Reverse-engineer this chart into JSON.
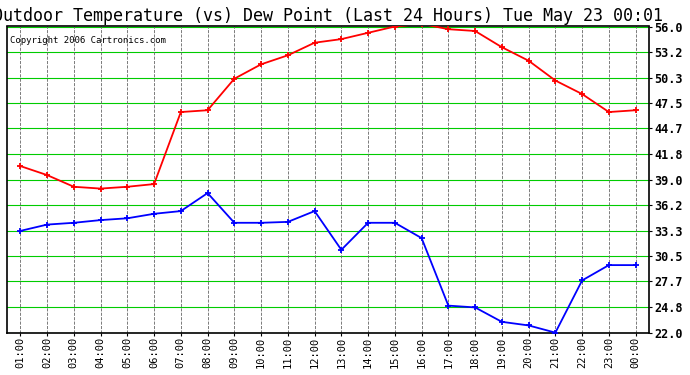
{
  "title": "Outdoor Temperature (vs) Dew Point (Last 24 Hours) Tue May 23 00:01",
  "copyright": "Copyright 2006 Cartronics.com",
  "fig_bg_color": "#ffffff",
  "plot_bg_color": "#ffffff",
  "grid_color_h": "#00cc00",
  "grid_color_v": "#666666",
  "border_color": "#000000",
  "x_labels": [
    "01:00",
    "02:00",
    "03:00",
    "04:00",
    "05:00",
    "06:00",
    "07:00",
    "08:00",
    "09:00",
    "10:00",
    "11:00",
    "12:00",
    "13:00",
    "14:00",
    "15:00",
    "16:00",
    "17:00",
    "18:00",
    "19:00",
    "20:00",
    "21:00",
    "22:00",
    "23:00",
    "00:00"
  ],
  "temp_color": "#ff0000",
  "dew_color": "#0000ff",
  "temp_data": [
    40.5,
    39.5,
    38.2,
    38.0,
    38.2,
    38.5,
    46.5,
    46.7,
    50.2,
    51.8,
    52.8,
    54.2,
    54.6,
    55.3,
    56.0,
    56.3,
    55.7,
    55.5,
    53.7,
    52.2,
    50.0,
    48.5,
    46.5,
    46.7
  ],
  "dew_data": [
    33.3,
    34.0,
    34.2,
    34.5,
    34.7,
    35.2,
    35.5,
    37.5,
    34.2,
    34.2,
    34.3,
    35.5,
    31.2,
    34.2,
    34.2,
    32.5,
    25.0,
    24.8,
    23.2,
    22.8,
    22.0,
    27.8,
    29.5,
    29.5
  ],
  "ylim": [
    22.0,
    56.0
  ],
  "yticks": [
    22.0,
    24.8,
    27.7,
    30.5,
    33.3,
    36.2,
    39.0,
    41.8,
    44.7,
    47.5,
    50.3,
    53.2,
    56.0
  ],
  "title_fontsize": 12,
  "axis_label_fontsize": 7.5,
  "ytick_fontsize": 8.5,
  "copyright_fontsize": 6.5
}
